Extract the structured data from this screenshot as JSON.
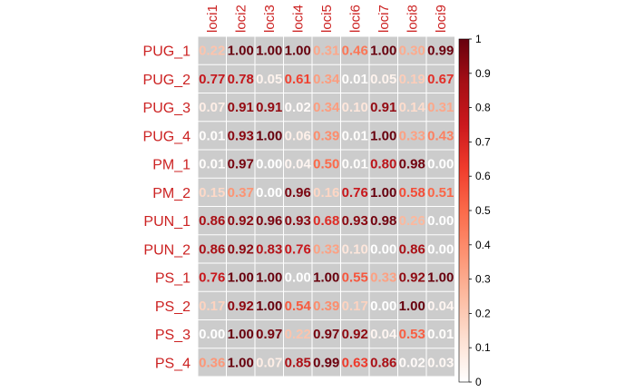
{
  "chart_data": {
    "type": "heatmap",
    "title": "",
    "xlabel": "",
    "ylabel": "",
    "columns": [
      "loci1",
      "loci2",
      "loci3",
      "loci4",
      "loci5",
      "loci6",
      "loci7",
      "loci8",
      "loci9"
    ],
    "rows": [
      "PUG_1",
      "PUG_2",
      "PUG_3",
      "PUG_4",
      "PM_1",
      "PM_2",
      "PUN_1",
      "PUN_2",
      "PS_1",
      "PS_2",
      "PS_3",
      "PS_4"
    ],
    "values": [
      [
        0.22,
        1.0,
        1.0,
        1.0,
        0.31,
        0.46,
        1.0,
        0.3,
        0.99
      ],
      [
        0.77,
        0.78,
        0.05,
        0.61,
        0.34,
        0.01,
        0.05,
        0.19,
        0.67
      ],
      [
        0.07,
        0.91,
        0.91,
        0.02,
        0.34,
        0.1,
        0.91,
        0.14,
        0.31
      ],
      [
        0.01,
        0.93,
        1.0,
        0.06,
        0.39,
        0.01,
        1.0,
        0.33,
        0.43
      ],
      [
        0.01,
        0.97,
        0.0,
        0.04,
        0.5,
        0.01,
        0.8,
        0.98,
        0.0
      ],
      [
        0.15,
        0.37,
        0.0,
        0.96,
        0.16,
        0.76,
        1.0,
        0.58,
        0.51
      ],
      [
        0.86,
        0.92,
        0.96,
        0.93,
        0.68,
        0.93,
        0.98,
        0.26,
        0.0
      ],
      [
        0.86,
        0.92,
        0.83,
        0.76,
        0.33,
        0.1,
        0.0,
        0.86,
        0.0
      ],
      [
        0.76,
        1.0,
        1.0,
        0.0,
        1.0,
        0.55,
        0.33,
        0.92,
        1.0
      ],
      [
        0.17,
        0.92,
        1.0,
        0.54,
        0.39,
        0.17,
        0.0,
        1.0,
        0.04
      ],
      [
        0.0,
        1.0,
        0.97,
        0.22,
        0.97,
        0.92,
        0.04,
        0.53,
        0.01
      ],
      [
        0.36,
        1.0,
        0.07,
        0.85,
        0.99,
        0.63,
        0.86,
        0.02,
        0.03
      ]
    ],
    "colorbar": {
      "ticks": [
        0,
        0.1,
        0.2,
        0.3,
        0.4,
        0.5,
        0.6,
        0.7,
        0.8,
        0.9,
        1
      ],
      "tick_labels": [
        "0",
        "0.1",
        "0.2",
        "0.3",
        "0.4",
        "0.5",
        "0.6",
        "0.7",
        "0.8",
        "0.9",
        "1"
      ],
      "range": [
        0,
        1
      ]
    },
    "colors": {
      "cell_background": "#cccccc",
      "label_color": "#cc2222",
      "scale": [
        "#ffffff",
        "#fde0d2",
        "#fcbba1",
        "#fc9272",
        "#fb6a4a",
        "#ef3b2c",
        "#cb181d",
        "#a50f15",
        "#67000d"
      ]
    },
    "grid": true,
    "legend_position": "right"
  }
}
